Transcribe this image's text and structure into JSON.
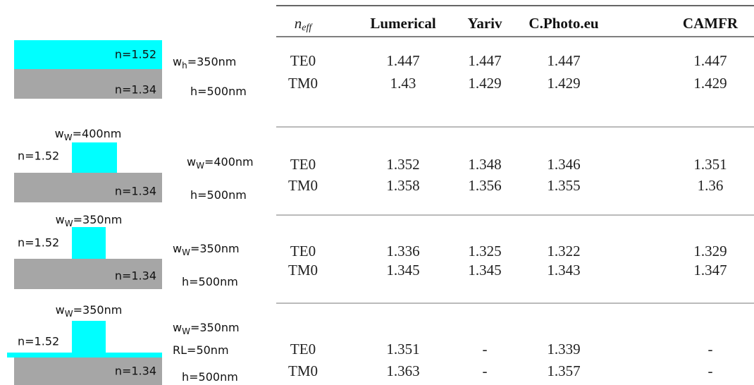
{
  "header": {
    "neff": {
      "var": "n",
      "sub": "eff"
    },
    "columns": [
      "Lumerical",
      "Yariv",
      "C.Photo.eu",
      "CAMFR"
    ]
  },
  "groups": [
    {
      "core_width_label": null,
      "core_index": "n=1.52",
      "substrate_index": "n=1.34",
      "params": [
        {
          "var": "w",
          "sub": "h",
          "rest": "=350nm"
        },
        {
          "var": "h",
          "sub": null,
          "rest": "=500nm"
        }
      ],
      "rows": [
        [
          "TE0",
          "1.447",
          "1.447",
          "1.447",
          "1.447"
        ],
        [
          "TM0",
          "1.43",
          "1.429",
          "1.429",
          "1.429"
        ]
      ]
    },
    {
      "core_width_label": {
        "var": "w",
        "sub": "W",
        "rest": "=400nm"
      },
      "core_index": "n=1.52",
      "substrate_index": "n=1.34",
      "params": [
        {
          "var": "w",
          "sub": "W",
          "rest": "=400nm"
        },
        {
          "var": "h",
          "sub": null,
          "rest": "=500nm"
        }
      ],
      "rows": [
        [
          "TE0",
          "1.352",
          "1.348",
          "1.346",
          "1.351"
        ],
        [
          "TM0",
          "1.358",
          "1.356",
          "1.355",
          "1.36"
        ]
      ]
    },
    {
      "core_width_label": {
        "var": "w",
        "sub": "W",
        "rest": "=350nm"
      },
      "core_index": "n=1.52",
      "substrate_index": "n=1.34",
      "params": [
        {
          "var": "w",
          "sub": "W",
          "rest": "=350nm"
        },
        {
          "var": "h",
          "sub": null,
          "rest": "=500nm"
        }
      ],
      "rows": [
        [
          "TE0",
          "1.336",
          "1.325",
          "1.322",
          "1.329"
        ],
        [
          "TM0",
          "1.345",
          "1.345",
          "1.343",
          "1.347"
        ]
      ]
    },
    {
      "core_width_label": {
        "var": "w",
        "sub": "W",
        "rest": "=350nm"
      },
      "core_index": "n=1.52",
      "substrate_index": "n=1.34",
      "params": [
        {
          "var": "w",
          "sub": "W",
          "rest": "=350nm"
        },
        {
          "var": "RL",
          "sub": null,
          "rest": "=50nm"
        },
        {
          "var": "h",
          "sub": null,
          "rest": "=500nm"
        }
      ],
      "rows": [
        [
          "TE0",
          "1.351",
          "-",
          "1.339",
          "-"
        ],
        [
          "TM0",
          "1.363",
          "-",
          "1.357",
          "-"
        ]
      ]
    }
  ]
}
